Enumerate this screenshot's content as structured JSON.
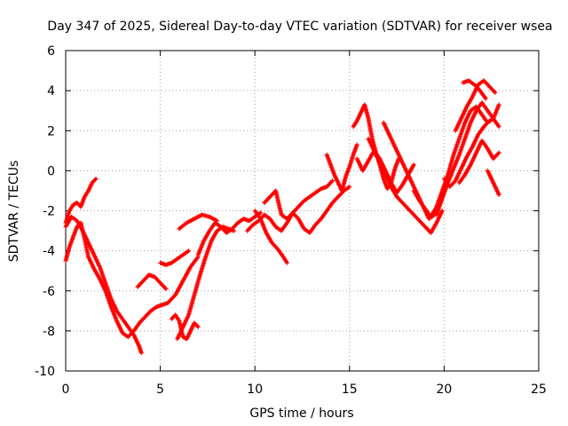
{
  "chart_data": {
    "type": "scatter",
    "title": "Day 347 of 2025, Sidereal Day-to-day VTEC variation (SDTVAR) for receiver wsea",
    "xlabel": "GPS time / hours",
    "ylabel": "SDTVAR / TECUs",
    "xlim": [
      0,
      25
    ],
    "ylim": [
      -10,
      6
    ],
    "x_ticks": [
      "0",
      "5",
      "10",
      "15",
      "20",
      "25"
    ],
    "y_ticks": [
      "-10",
      "-8",
      "-6",
      "-4",
      "-2",
      "0",
      "2",
      "4",
      "6"
    ],
    "grid": true,
    "marker": "plus",
    "colors": {
      "series": "#ff0000"
    },
    "tracks": [
      {
        "x": [
          0.0,
          0.3,
          0.6,
          0.9,
          1.2,
          1.5,
          1.8,
          2.1,
          2.4,
          2.7,
          3.0,
          3.3,
          3.6,
          3.9,
          4.0
        ],
        "y": [
          -2.8,
          -2.3,
          -2.5,
          -3.0,
          -3.6,
          -4.2,
          -4.8,
          -5.6,
          -6.4,
          -7.0,
          -7.4,
          -7.8,
          -8.2,
          -8.8,
          -9.1
        ]
      },
      {
        "x": [
          0.0,
          0.2,
          0.4,
          0.6,
          0.8,
          1.0,
          1.2,
          1.4,
          1.6
        ],
        "y": [
          -2.6,
          -2.0,
          -1.7,
          -1.6,
          -1.8,
          -1.3,
          -1.0,
          -0.6,
          -0.4
        ]
      },
      {
        "x": [
          0.0,
          0.2,
          0.4,
          0.6,
          0.8,
          1.0,
          1.2,
          1.5,
          1.8,
          2.1,
          2.4,
          2.7,
          3.0,
          3.3,
          3.6,
          3.9,
          4.2,
          4.5,
          4.8,
          5.1,
          5.4,
          5.8,
          6.2,
          6.6,
          7.0
        ],
        "y": [
          -4.5,
          -3.8,
          -3.3,
          -2.8,
          -2.6,
          -3.4,
          -4.3,
          -4.9,
          -5.4,
          -6.0,
          -6.8,
          -7.5,
          -8.1,
          -8.3,
          -8.0,
          -7.6,
          -7.3,
          -7.0,
          -6.8,
          -6.7,
          -6.6,
          -6.2,
          -5.5,
          -4.8,
          -4.3
        ]
      },
      {
        "x": [
          3.8,
          4.1,
          4.4,
          4.7,
          5.0,
          5.3
        ],
        "y": [
          -5.8,
          -5.5,
          -5.2,
          -5.3,
          -5.6,
          -5.9
        ]
      },
      {
        "x": [
          5.0,
          5.3,
          5.6,
          5.9,
          6.2,
          6.5
        ],
        "y": [
          -4.6,
          -4.7,
          -4.6,
          -4.4,
          -4.2,
          -4.0
        ]
      },
      {
        "x": [
          5.6,
          5.8,
          6.0,
          6.2,
          6.4,
          6.6,
          6.8,
          7.0
        ],
        "y": [
          -7.4,
          -7.2,
          -7.5,
          -8.3,
          -8.4,
          -8.0,
          -7.6,
          -7.8
        ]
      },
      {
        "x": [
          5.9,
          6.2,
          6.5,
          6.8,
          7.1,
          7.4,
          7.7,
          8.0,
          8.3,
          8.6,
          8.9
        ],
        "y": [
          -8.4,
          -7.8,
          -7.2,
          -6.2,
          -5.2,
          -4.3,
          -3.5,
          -3.0,
          -2.8,
          -2.9,
          -3.0
        ]
      },
      {
        "x": [
          7.0,
          7.3,
          7.6,
          7.9,
          8.2,
          8.5,
          8.8,
          9.1,
          9.4,
          9.7,
          10.0,
          10.3
        ],
        "y": [
          -4.2,
          -3.5,
          -3.0,
          -2.6,
          -2.8,
          -3.1,
          -2.9,
          -2.6,
          -2.4,
          -2.5,
          -2.3,
          -2.1
        ]
      },
      {
        "x": [
          6.0,
          6.4,
          6.8,
          7.2,
          7.6,
          8.0
        ],
        "y": [
          -2.9,
          -2.6,
          -2.4,
          -2.2,
          -2.3,
          -2.5
        ]
      },
      {
        "x": [
          10.0,
          10.3,
          10.6,
          10.9,
          11.2,
          11.5,
          11.7
        ],
        "y": [
          -2.0,
          -2.4,
          -3.1,
          -3.6,
          -3.9,
          -4.3,
          -4.6
        ]
      },
      {
        "x": [
          9.6,
          9.9,
          10.2,
          10.5,
          10.8,
          11.1,
          11.4,
          11.7,
          12.0,
          12.3,
          12.6,
          12.9,
          13.2,
          13.5,
          13.8,
          14.1,
          14.4,
          14.7,
          15.0
        ],
        "y": [
          -3.0,
          -2.7,
          -2.5,
          -2.2,
          -2.4,
          -2.8,
          -3.0,
          -2.6,
          -2.1,
          -2.4,
          -2.9,
          -3.1,
          -2.7,
          -2.4,
          -2.0,
          -1.6,
          -1.3,
          -1.0,
          -0.8
        ]
      },
      {
        "x": [
          10.5,
          10.8,
          11.1,
          11.4,
          11.7,
          12.0,
          12.3,
          12.6,
          12.9,
          13.2,
          13.5,
          13.8,
          14.1
        ],
        "y": [
          -1.6,
          -1.3,
          -1.0,
          -2.2,
          -2.4,
          -2.1,
          -1.8,
          -1.5,
          -1.3,
          -1.1,
          -0.9,
          -0.8,
          -0.5
        ]
      },
      {
        "x": [
          13.8,
          14.0,
          14.2,
          14.4,
          14.6,
          14.8,
          15.0,
          15.2,
          15.4
        ],
        "y": [
          0.8,
          0.3,
          -0.2,
          -0.6,
          -1.0,
          -0.3,
          0.2,
          0.8,
          1.3
        ]
      },
      {
        "x": [
          15.2,
          15.4,
          15.6,
          15.8,
          16.0,
          16.2,
          16.4,
          16.6,
          16.8,
          17.0,
          17.2,
          17.4,
          17.6
        ],
        "y": [
          2.2,
          2.5,
          2.9,
          3.3,
          2.6,
          1.6,
          0.9,
          0.3,
          -0.4,
          -0.9,
          -0.6,
          0.1,
          0.6
        ]
      },
      {
        "x": [
          15.4,
          15.7,
          16.0,
          16.3,
          16.6,
          16.9,
          17.2,
          17.5,
          17.8,
          18.1,
          18.4
        ],
        "y": [
          0.6,
          0.0,
          0.5,
          1.0,
          0.6,
          0.0,
          -0.6,
          -1.1,
          -0.7,
          -0.2,
          0.3
        ]
      },
      {
        "x": [
          16.0,
          16.3,
          16.6,
          16.9,
          17.2,
          17.5,
          17.8,
          18.1,
          18.4,
          18.7,
          19.0,
          19.3,
          19.6,
          19.9
        ],
        "y": [
          1.6,
          1.0,
          0.4,
          -0.2,
          -0.8,
          -1.3,
          -1.6,
          -1.9,
          -2.2,
          -2.5,
          -2.8,
          -3.1,
          -2.6,
          -2.0
        ]
      },
      {
        "x": [
          16.8,
          17.1,
          17.4,
          17.7,
          18.0,
          18.3,
          18.6,
          18.9,
          19.2,
          19.5,
          19.8,
          20.1
        ],
        "y": [
          2.4,
          1.8,
          1.2,
          0.6,
          0.0,
          -0.6,
          -1.2,
          -1.8,
          -2.4,
          -2.2,
          -1.5,
          -0.8
        ]
      },
      {
        "x": [
          18.4,
          18.7,
          19.0,
          19.3,
          19.6,
          19.9,
          20.2,
          20.5,
          20.8,
          21.1,
          21.4,
          21.7,
          22.0,
          22.3,
          22.6,
          22.9
        ],
        "y": [
          -1.0,
          -1.5,
          -1.9,
          -2.3,
          -1.8,
          -1.0,
          -0.2,
          0.8,
          1.6,
          2.4,
          3.0,
          3.2,
          2.8,
          2.4,
          2.6,
          3.3
        ]
      },
      {
        "x": [
          19.6,
          19.9,
          20.2,
          20.5,
          20.8,
          21.1,
          21.4,
          21.7,
          22.0,
          22.3,
          22.6,
          22.9
        ],
        "y": [
          -2.2,
          -1.4,
          -0.6,
          0.1,
          0.8,
          1.6,
          2.4,
          3.0,
          3.4,
          3.0,
          2.6,
          2.2
        ]
      },
      {
        "x": [
          20.0,
          20.3,
          20.6,
          20.9,
          21.2,
          21.5,
          21.8,
          22.1,
          22.4
        ],
        "y": [
          -0.4,
          -0.8,
          -0.5,
          0.1,
          0.7,
          1.2,
          1.8,
          2.2,
          2.5
        ]
      },
      {
        "x": [
          20.6,
          20.9,
          21.2,
          21.5,
          21.8,
          22.1,
          22.4,
          22.7
        ],
        "y": [
          2.0,
          2.6,
          3.2,
          3.7,
          4.3,
          4.5,
          4.2,
          3.9
        ]
      },
      {
        "x": [
          20.8,
          21.1,
          21.4,
          21.7,
          22.0,
          22.3,
          22.6,
          22.9
        ],
        "y": [
          -0.6,
          -0.2,
          0.3,
          0.9,
          1.5,
          1.1,
          0.6,
          0.9
        ]
      },
      {
        "x": [
          22.3,
          22.5,
          22.7,
          22.9
        ],
        "y": [
          0.0,
          -0.4,
          -0.8,
          -1.2
        ]
      },
      {
        "x": [
          21.0,
          21.3,
          21.6,
          21.9,
          22.2
        ],
        "y": [
          4.4,
          4.5,
          4.3,
          4.0,
          3.6
        ]
      }
    ]
  }
}
